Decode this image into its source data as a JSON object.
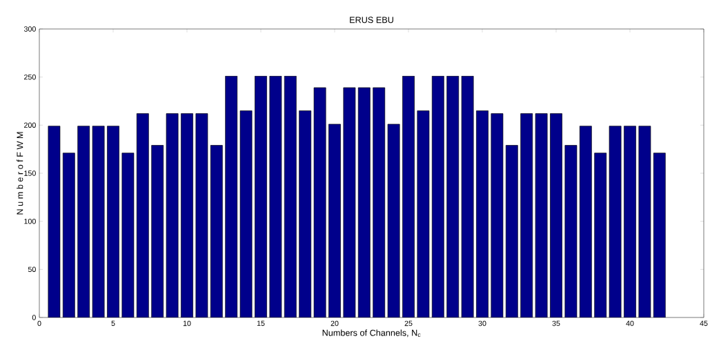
{
  "chart_data": {
    "type": "bar",
    "title": "ERUS EBU",
    "xlabel": "Numbers of Channels, N$_{c}$",
    "ylabel": "N u m b e r  o f  F W M",
    "x": [
      1,
      2,
      3,
      4,
      5,
      6,
      7,
      8,
      9,
      10,
      11,
      12,
      13,
      14,
      15,
      16,
      17,
      18,
      19,
      20,
      21,
      22,
      23,
      24,
      25,
      26,
      27,
      28,
      29,
      30,
      31,
      32,
      33,
      34,
      35,
      36,
      37,
      38,
      39,
      40,
      41,
      42
    ],
    "values": [
      199,
      171,
      199,
      199,
      199,
      171,
      212,
      179,
      212,
      212,
      212,
      179,
      251,
      215,
      251,
      251,
      251,
      215,
      239,
      201,
      239,
      239,
      239,
      201,
      251,
      215,
      251,
      251,
      251,
      215,
      212,
      179,
      212,
      212,
      212,
      179,
      199,
      171,
      199,
      199,
      199,
      171
    ],
    "color": "#00008b",
    "xlim": [
      0,
      45
    ],
    "xticks": [
      0,
      5,
      10,
      15,
      20,
      25,
      30,
      35,
      40,
      45
    ],
    "ylim": [
      0,
      300
    ],
    "yticks": [
      0,
      50,
      100,
      150,
      200,
      250,
      300
    ]
  }
}
